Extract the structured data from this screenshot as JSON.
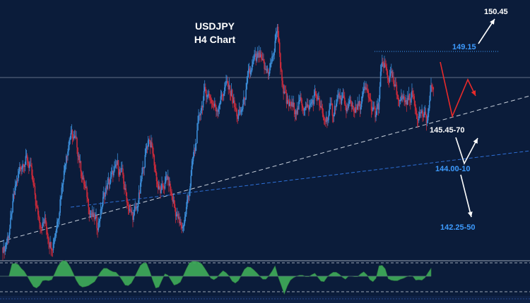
{
  "chart_data": {
    "type": "candlestick",
    "title": "USDJPY",
    "subtitle": "H4 Chart",
    "price_range": [
      140.0,
      151.0
    ],
    "close_series": [
      139.8,
      140.4,
      141.2,
      142.3,
      143.0,
      143.6,
      143.9,
      144.0,
      143.6,
      142.8,
      141.9,
      141.2,
      140.9,
      141.0,
      140.4,
      140.0,
      140.3,
      141.0,
      142.0,
      143.2,
      144.2,
      144.9,
      145.1,
      144.8,
      144.1,
      143.3,
      142.6,
      142.0,
      141.4,
      141.1,
      140.9,
      141.3,
      142.0,
      142.5,
      142.9,
      143.2,
      143.4,
      143.7,
      143.3,
      142.6,
      141.9,
      141.4,
      141.2,
      141.6,
      142.4,
      143.4,
      144.3,
      145.0,
      144.5,
      143.5,
      142.6,
      142.3,
      142.7,
      143.1,
      142.5,
      141.9,
      141.3,
      140.9,
      140.7,
      141.4,
      142.4,
      143.4,
      144.4,
      145.4,
      146.3,
      146.9,
      147.0,
      146.9,
      146.5,
      146.3,
      146.6,
      147.0,
      147.4,
      147.3,
      147.0,
      146.4,
      145.9,
      146.1,
      146.6,
      147.3,
      148.0,
      148.4,
      148.6,
      148.7,
      148.4,
      148.0,
      148.1,
      148.5,
      149.0,
      150.2,
      148.4,
      147.2,
      146.6,
      146.4,
      146.4,
      146.3,
      146.4,
      146.6,
      146.5,
      146.3,
      146.5,
      146.8,
      146.9,
      146.3,
      145.8,
      145.8,
      146.1,
      146.2,
      146.6,
      146.9,
      146.6,
      146.4,
      146.3,
      146.6,
      146.4,
      146.2,
      146.5,
      146.9,
      147.1,
      146.8,
      146.2,
      146.0,
      146.4,
      148.3,
      148.2,
      147.9,
      147.8,
      147.4,
      147.0,
      146.9,
      146.8,
      146.6,
      146.8,
      146.9,
      146.6,
      146.0,
      146.2,
      145.8,
      145.7,
      146.9,
      147.4
    ],
    "levels": [
      {
        "label": "150.45",
        "price": 150.45
      },
      {
        "label": "149.15",
        "price": 149.15
      },
      {
        "label": "145.45-70",
        "price": 145.6
      },
      {
        "label": "144.00-10",
        "price": 144.05
      },
      {
        "label": "142.25-50",
        "price": 142.4
      }
    ],
    "grid": false
  },
  "colors": {
    "background": "#0b1c3a",
    "bull_candle": "#3a8bd6",
    "bear_candle": "#c92a3a",
    "support_line": "#c8d0dc",
    "blue_trend": "#2e6fd6",
    "projection_red": "#e82a2a",
    "projection_white": "#ffffff",
    "level_blue": "#3d9bff",
    "oscillator_fill": "#3fae5a"
  }
}
